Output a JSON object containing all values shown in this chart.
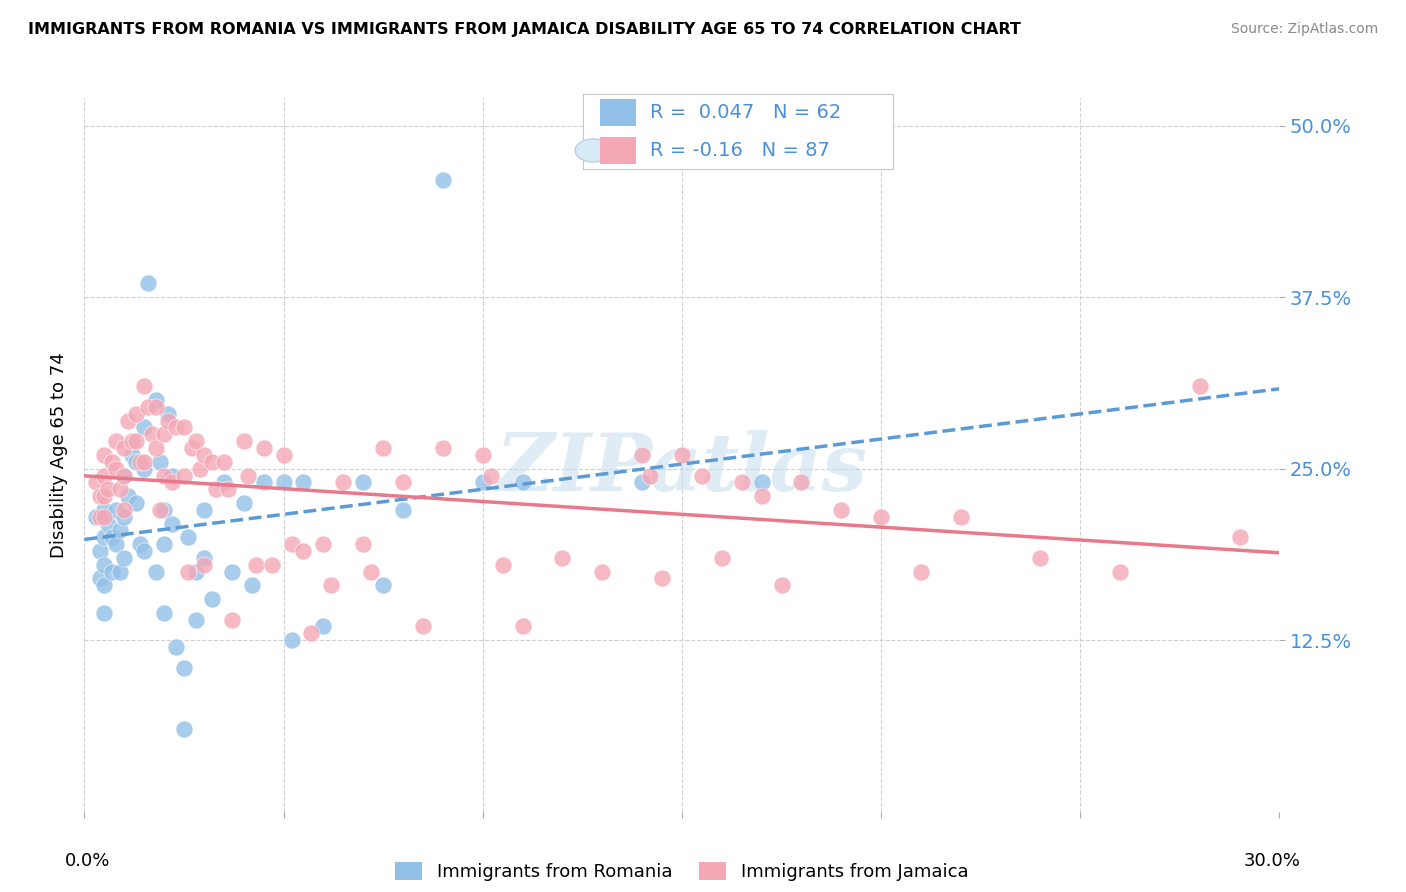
{
  "title": "IMMIGRANTS FROM ROMANIA VS IMMIGRANTS FROM JAMAICA DISABILITY AGE 65 TO 74 CORRELATION CHART",
  "source": "Source: ZipAtlas.com",
  "ylabel": "Disability Age 65 to 74",
  "ytick_labels": [
    "12.5%",
    "25.0%",
    "37.5%",
    "50.0%"
  ],
  "ytick_values": [
    0.125,
    0.25,
    0.375,
    0.5
  ],
  "xlim": [
    0.0,
    0.3
  ],
  "ylim": [
    0.0,
    0.52
  ],
  "romania_R": 0.047,
  "romania_N": 62,
  "jamaica_R": -0.16,
  "jamaica_N": 87,
  "romania_color": "#92c0e8",
  "jamaica_color": "#f4a7b5",
  "romania_line_color": "#5b9bd5",
  "jamaica_line_color": "#e8788a",
  "legend_label_romania": "Immigrants from Romania",
  "legend_label_jamaica": "Immigrants from Jamaica",
  "watermark": "ZIPatlas",
  "romania_x": [
    0.003,
    0.004,
    0.004,
    0.005,
    0.005,
    0.005,
    0.005,
    0.005,
    0.006,
    0.007,
    0.007,
    0.008,
    0.008,
    0.009,
    0.009,
    0.01,
    0.01,
    0.01,
    0.011,
    0.012,
    0.013,
    0.013,
    0.014,
    0.015,
    0.015,
    0.015,
    0.016,
    0.018,
    0.018,
    0.019,
    0.02,
    0.02,
    0.02,
    0.021,
    0.022,
    0.022,
    0.023,
    0.025,
    0.025,
    0.026,
    0.028,
    0.028,
    0.03,
    0.03,
    0.032,
    0.035,
    0.037,
    0.04,
    0.042,
    0.045,
    0.05,
    0.052,
    0.055,
    0.06,
    0.07,
    0.075,
    0.08,
    0.09,
    0.1,
    0.11,
    0.14,
    0.17
  ],
  "romania_y": [
    0.215,
    0.19,
    0.17,
    0.22,
    0.2,
    0.18,
    0.165,
    0.145,
    0.21,
    0.2,
    0.175,
    0.22,
    0.195,
    0.205,
    0.175,
    0.245,
    0.215,
    0.185,
    0.23,
    0.26,
    0.255,
    0.225,
    0.195,
    0.28,
    0.25,
    0.19,
    0.385,
    0.3,
    0.175,
    0.255,
    0.22,
    0.195,
    0.145,
    0.29,
    0.245,
    0.21,
    0.12,
    0.105,
    0.06,
    0.2,
    0.175,
    0.14,
    0.22,
    0.185,
    0.155,
    0.24,
    0.175,
    0.225,
    0.165,
    0.24,
    0.24,
    0.125,
    0.24,
    0.135,
    0.24,
    0.165,
    0.22,
    0.46,
    0.24,
    0.24,
    0.24,
    0.24
  ],
  "jamaica_x": [
    0.003,
    0.004,
    0.004,
    0.005,
    0.005,
    0.005,
    0.005,
    0.006,
    0.007,
    0.008,
    0.008,
    0.009,
    0.01,
    0.01,
    0.01,
    0.011,
    0.012,
    0.013,
    0.013,
    0.014,
    0.015,
    0.015,
    0.016,
    0.017,
    0.018,
    0.018,
    0.019,
    0.02,
    0.02,
    0.021,
    0.022,
    0.023,
    0.025,
    0.025,
    0.026,
    0.027,
    0.028,
    0.029,
    0.03,
    0.03,
    0.032,
    0.033,
    0.035,
    0.036,
    0.037,
    0.04,
    0.041,
    0.043,
    0.045,
    0.047,
    0.05,
    0.052,
    0.055,
    0.057,
    0.06,
    0.062,
    0.065,
    0.07,
    0.072,
    0.075,
    0.08,
    0.085,
    0.09,
    0.1,
    0.102,
    0.105,
    0.11,
    0.12,
    0.13,
    0.14,
    0.142,
    0.145,
    0.15,
    0.155,
    0.16,
    0.165,
    0.17,
    0.175,
    0.18,
    0.19,
    0.2,
    0.21,
    0.22,
    0.24,
    0.26,
    0.28,
    0.29
  ],
  "jamaica_y": [
    0.24,
    0.23,
    0.215,
    0.26,
    0.245,
    0.23,
    0.215,
    0.235,
    0.255,
    0.27,
    0.25,
    0.235,
    0.265,
    0.245,
    0.22,
    0.285,
    0.27,
    0.29,
    0.27,
    0.255,
    0.31,
    0.255,
    0.295,
    0.275,
    0.295,
    0.265,
    0.22,
    0.275,
    0.245,
    0.285,
    0.24,
    0.28,
    0.28,
    0.245,
    0.175,
    0.265,
    0.27,
    0.25,
    0.26,
    0.18,
    0.255,
    0.235,
    0.255,
    0.235,
    0.14,
    0.27,
    0.245,
    0.18,
    0.265,
    0.18,
    0.26,
    0.195,
    0.19,
    0.13,
    0.195,
    0.165,
    0.24,
    0.195,
    0.175,
    0.265,
    0.24,
    0.135,
    0.265,
    0.26,
    0.245,
    0.18,
    0.135,
    0.185,
    0.175,
    0.26,
    0.245,
    0.17,
    0.26,
    0.245,
    0.185,
    0.24,
    0.23,
    0.165,
    0.24,
    0.22,
    0.215,
    0.175,
    0.215,
    0.185,
    0.175,
    0.31,
    0.2
  ]
}
